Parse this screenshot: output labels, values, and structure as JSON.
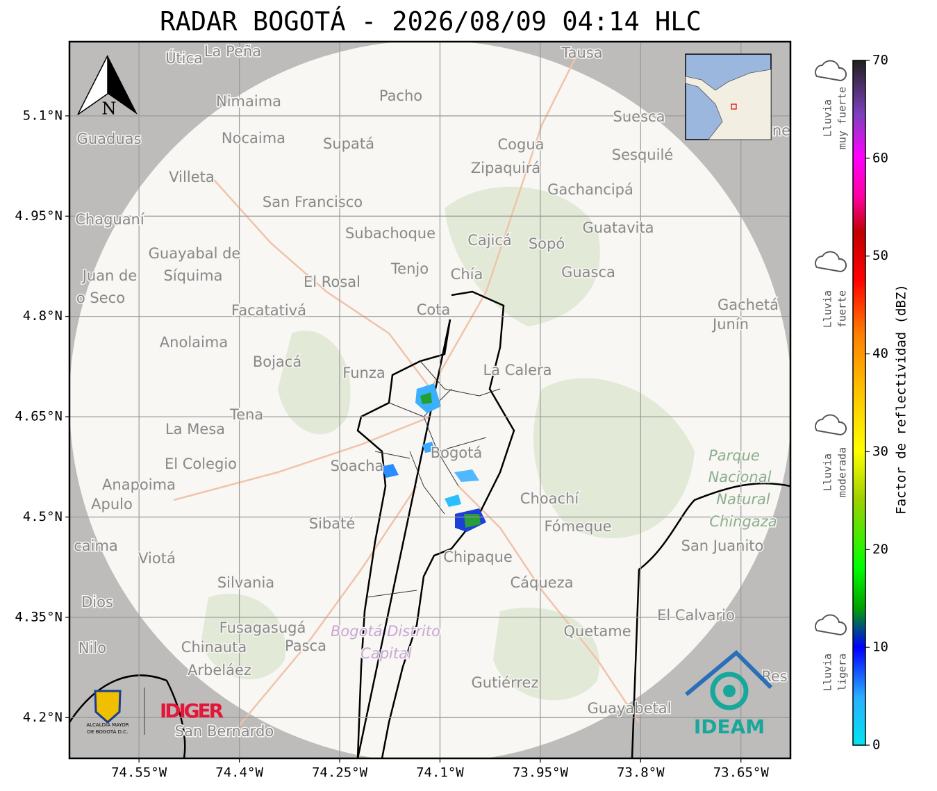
{
  "title": "RADAR BOGOTÁ - 2026/08/09 04:14 HLC",
  "map": {
    "xlim": [
      -74.654,
      -73.576
    ],
    "ylim": [
      4.139,
      5.211
    ],
    "xticks": [
      {
        "value": -74.55,
        "label": "74.55°W"
      },
      {
        "value": -74.4,
        "label": "74.4°W"
      },
      {
        "value": -74.25,
        "label": "74.25°W"
      },
      {
        "value": -74.1,
        "label": "74.1°W"
      },
      {
        "value": -73.95,
        "label": "73.95°W"
      },
      {
        "value": -73.8,
        "label": "73.8°W"
      },
      {
        "value": -73.65,
        "label": "73.65°W"
      }
    ],
    "yticks": [
      {
        "value": 5.1,
        "label": "5.1°N"
      },
      {
        "value": 4.95,
        "label": "4.95°N"
      },
      {
        "value": 4.8,
        "label": "4.8°N"
      },
      {
        "value": 4.65,
        "label": "4.65°N"
      },
      {
        "value": 4.5,
        "label": "4.5°N"
      },
      {
        "value": 4.35,
        "label": "4.35°N"
      },
      {
        "value": 4.2,
        "label": "4.2°N"
      }
    ],
    "grid": true,
    "north": "N",
    "places": [
      "Útica",
      "La Peña",
      "Tausa",
      "Pacho",
      "Nimaima",
      "Suesca",
      "Guaduas",
      "Nocaima",
      "Supatá",
      "Cogua",
      "Sesquilé",
      "Villeta",
      "Zipaquirá",
      "Gachancipá",
      "San Francisco",
      "Chaguaní",
      "Guatavita",
      "Subachoque",
      "Cajicá",
      "Sopó",
      "Guayabal de",
      "Síquima",
      "Juan de",
      "Tenjo",
      "Chía",
      "Guasca",
      "El Rosal",
      "o Seco",
      "Facatativá",
      "Cota",
      "Gachetá",
      "Junín",
      "Anolaima",
      "Bojacá",
      "Funza",
      "La Calera",
      "Tena",
      "La Mesa",
      "Bogotá",
      "Parque",
      "Nacional",
      "Natural",
      "Chingaza",
      "El Colegio",
      "Soacha",
      "Anapoima",
      "Apulo",
      "Choachí",
      "Sibaté",
      "Fómeque",
      "San Juanito",
      "caima",
      "Viotá",
      "Chipaque",
      "Silvania",
      "Cáqueza",
      "Dios",
      "El Calvario",
      "Fusagasugá",
      "Bogotá Distrito",
      "Capital",
      "Quetame",
      "Nilo",
      "Chinauta",
      "Pasca",
      "Arbeláez",
      "Gutiérrez",
      "Guayabetal",
      "San Bernardo",
      "Res",
      "ne"
    ]
  },
  "logos": {
    "alcaldia": [
      "ALCALDÍA MAYOR",
      "DE BOGOTÁ D.C."
    ],
    "idiger": "IDIGER",
    "ideam": "IDEAM"
  },
  "colorbar": {
    "label": "Factor de reflectividad (dBZ)",
    "lim": [
      0,
      70
    ],
    "ticks": [
      0,
      10,
      20,
      30,
      40,
      50,
      60,
      70
    ],
    "classes": [
      [
        "Lluvia",
        "muy fuerte"
      ],
      [
        "Lluvia",
        "fuerte"
      ],
      [
        "Lluvia",
        "moderada"
      ],
      [
        "Lluvia",
        "ligera"
      ]
    ]
  }
}
